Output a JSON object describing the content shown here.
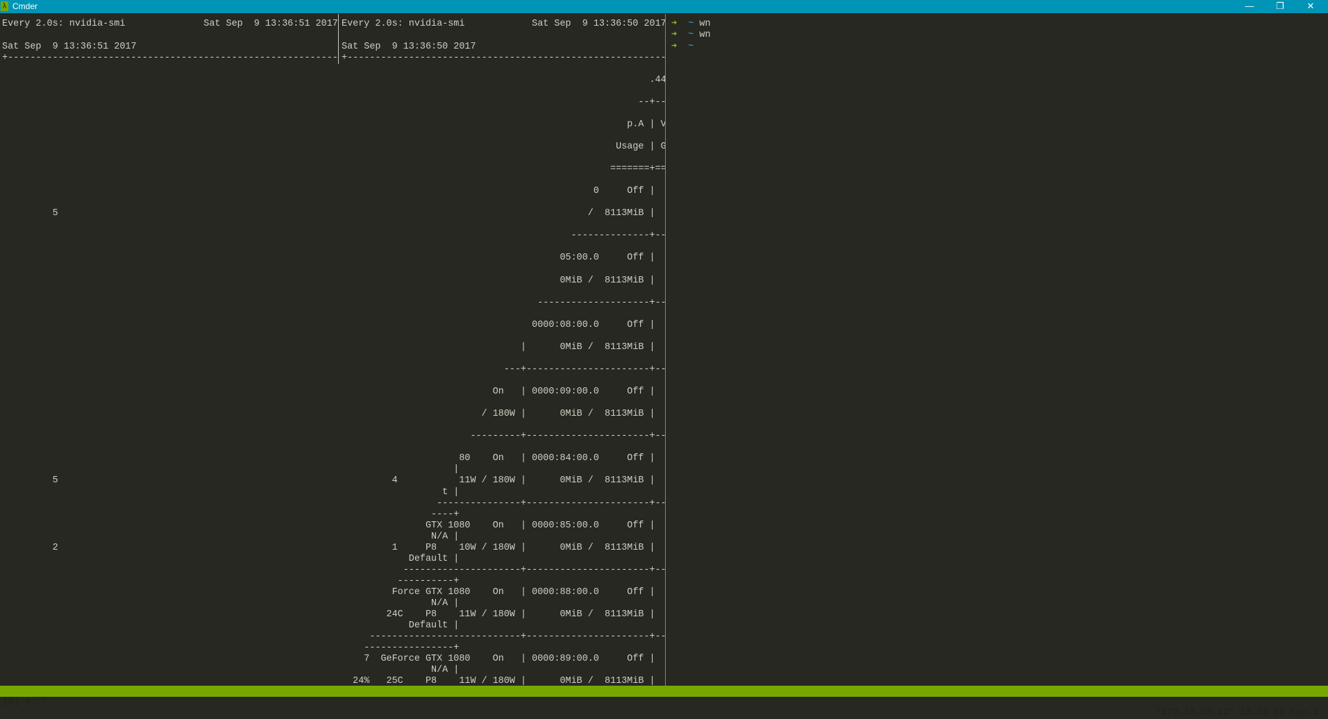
{
  "window": {
    "title": "Cmder",
    "app_icon": "lambda-icon",
    "app_icon_glyph": "λ",
    "controls": {
      "minimize": "—",
      "restore": "❐",
      "close": "✕"
    }
  },
  "colors": {
    "background": "#272822",
    "titlebar": "#0095b6",
    "statusbar": "#76a800",
    "prompt_arrow": "#8cc21f",
    "prompt_path": "#3ba3d6",
    "pane_divider": "#76a800"
  },
  "left_pane": {
    "lines": [
      "Every 2.0s: nvidia-smi              Sat Sep  9 13:36:51 2017",
      "",
      "Sat Sep  9 13:36:51 2017",
      "+-----------------------------------------------------------",
      "",
      "",
      "",
      "",
      "",
      "",
      "",
      "",
      "",
      "",
      "",
      "",
      "",
      "         5",
      "",
      "",
      "",
      "",
      "",
      "",
      "",
      "",
      "",
      "",
      "",
      "",
      "",
      "",
      "",
      "",
      "",
      "",
      "",
      "",
      "",
      "",
      "",
      "         5",
      "",
      "",
      "",
      "",
      "",
      "         2"
    ]
  },
  "middle_pane": {
    "lines": [
      "Every 2.0s: nvidia-smi            Sat Sep  9 13:36:50 2017",
      "",
      "Sat Sep  9 13:36:50 2017",
      "+---------------------------------------------------------",
      "",
      "                                                       .44",
      "",
      "                                                     --+--",
      "",
      "                                                   p.A | V",
      "",
      "                                                 Usage | G",
      "",
      "                                                =======+==",
      "",
      "                                             0     Off |",
      "",
      "                                            /  8113MiB |",
      "",
      "                                         --------------+--",
      "",
      "                                       05:00.0     Off |",
      "",
      "                                       0MiB /  8113MiB |",
      "",
      "                                   --------------------+--",
      "",
      "                                  0000:08:00.0     Off |",
      "",
      "                                |      0MiB /  8113MiB |",
      "",
      "                             ---+----------------------+--",
      "",
      "                           On   | 0000:09:00.0     Off |",
      "",
      "                         / 180W |      0MiB /  8113MiB |",
      "",
      "                       ---------+----------------------+--",
      "",
      "                     80    On   | 0000:84:00.0     Off |",
      "                    |",
      "         4           11W / 180W |      0MiB /  8113MiB |",
      "                  t |",
      "                 ---------------+----------------------+--",
      "                ----+",
      "               GTX 1080    On   | 0000:85:00.0     Off |",
      "                N/A |",
      "         1     P8    10W / 180W |      0MiB /  8113MiB |",
      "            Default |",
      "           ---------------------+----------------------+--",
      "          ----------+",
      "         Force GTX 1080    On   | 0000:88:00.0     Off |",
      "                N/A |",
      "        24C    P8    11W / 180W |      0MiB /  8113MiB |",
      "            Default |",
      "     ---------------------------+----------------------+--",
      "    ----------------+",
      "    7  GeForce GTX 1080    On   | 0000:89:00.0     Off |",
      "                N/A |",
      "  24%   25C    P8    11W / 180W |      0MiB /  8113MiB |"
    ]
  },
  "right_pane": {
    "prompts": [
      {
        "arrow": "➜",
        "path": "~",
        "command": "wn"
      },
      {
        "arrow": "➜",
        "path": "~",
        "command": "wn"
      },
      {
        "arrow": "➜",
        "path": "~",
        "command": ""
      }
    ]
  },
  "statusbar": {
    "left": "[0] 0:~*",
    "right": "\"172-16-10-11\" 13:36 09-Sep-1"
  }
}
